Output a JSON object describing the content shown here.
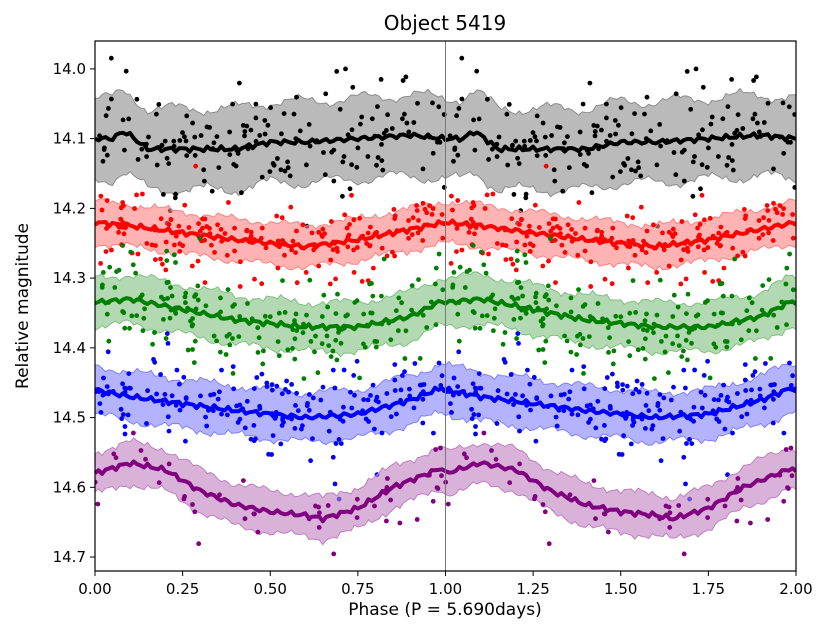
{
  "chart_data": {
    "type": "scatter",
    "title": "Object 5419",
    "xlabel": "Phase (P = 5.690days)",
    "ylabel": "Relative magnitude",
    "xlim": [
      0.0,
      2.0
    ],
    "ylim": [
      14.72,
      13.96
    ],
    "y_inverted": true,
    "grid": false,
    "legend": "none",
    "xticks": [
      0.0,
      0.25,
      0.5,
      0.75,
      1.0,
      1.25,
      1.5,
      1.75,
      2.0
    ],
    "xtick_labels": [
      "0.00",
      "0.25",
      "0.50",
      "0.75",
      "1.00",
      "1.25",
      "1.50",
      "1.75",
      "2.00"
    ],
    "yticks": [
      14.0,
      14.1,
      14.2,
      14.3,
      14.4,
      14.5,
      14.6,
      14.7
    ],
    "ytick_labels": [
      "14.0",
      "14.1",
      "14.2",
      "14.3",
      "14.4",
      "14.5",
      "14.6",
      "14.7"
    ],
    "period_marker_x": 1.0,
    "series": [
      {
        "color": "#000000",
        "band_color": "#8c8c8c",
        "trend_phase": [
          0.0,
          0.05,
          0.08,
          0.1,
          0.15,
          0.25,
          0.4,
          0.5,
          0.6,
          0.75,
          0.9,
          1.0
        ],
        "trend_mag": [
          14.1,
          14.1,
          14.09,
          14.095,
          14.115,
          14.115,
          14.115,
          14.105,
          14.105,
          14.1,
          14.095,
          14.1
        ],
        "band_halfwidth": 0.058,
        "scatter": 0.045,
        "points_per_cycle": 150
      },
      {
        "color": "#ff0000",
        "band_color": "#ff8080",
        "trend_phase": [
          0.0,
          0.1,
          0.25,
          0.4,
          0.5,
          0.6,
          0.75,
          0.9,
          1.0
        ],
        "trend_mag": [
          14.22,
          14.225,
          14.235,
          14.245,
          14.25,
          14.255,
          14.245,
          14.23,
          14.22
        ],
        "band_halfwidth": 0.03,
        "scatter": 0.03,
        "points_per_cycle": 170
      },
      {
        "color": "#008000",
        "band_color": "#7fc07f",
        "trend_phase": [
          0.0,
          0.1,
          0.25,
          0.4,
          0.5,
          0.6,
          0.75,
          0.9,
          1.0
        ],
        "trend_mag": [
          14.335,
          14.33,
          14.345,
          14.36,
          14.365,
          14.37,
          14.37,
          14.355,
          14.33
        ],
        "band_halfwidth": 0.035,
        "scatter": 0.035,
        "points_per_cycle": 170
      },
      {
        "color": "#0000ff",
        "band_color": "#8080ff",
        "trend_phase": [
          0.0,
          0.1,
          0.25,
          0.4,
          0.5,
          0.6,
          0.75,
          0.9,
          1.0
        ],
        "trend_mag": [
          14.46,
          14.47,
          14.48,
          14.49,
          14.495,
          14.5,
          14.495,
          14.475,
          14.455
        ],
        "band_halfwidth": 0.035,
        "scatter": 0.035,
        "points_per_cycle": 170
      },
      {
        "color": "#800080",
        "band_color": "#bf7fbf",
        "trend_phase": [
          0.0,
          0.1,
          0.2,
          0.3,
          0.4,
          0.5,
          0.6,
          0.65,
          0.75,
          0.85,
          1.0
        ],
        "trend_mag": [
          14.58,
          14.565,
          14.575,
          14.605,
          14.625,
          14.635,
          14.64,
          14.645,
          14.63,
          14.6,
          14.57
        ],
        "band_halfwidth": 0.03,
        "scatter": 0.03,
        "points_per_cycle": 45
      }
    ]
  }
}
